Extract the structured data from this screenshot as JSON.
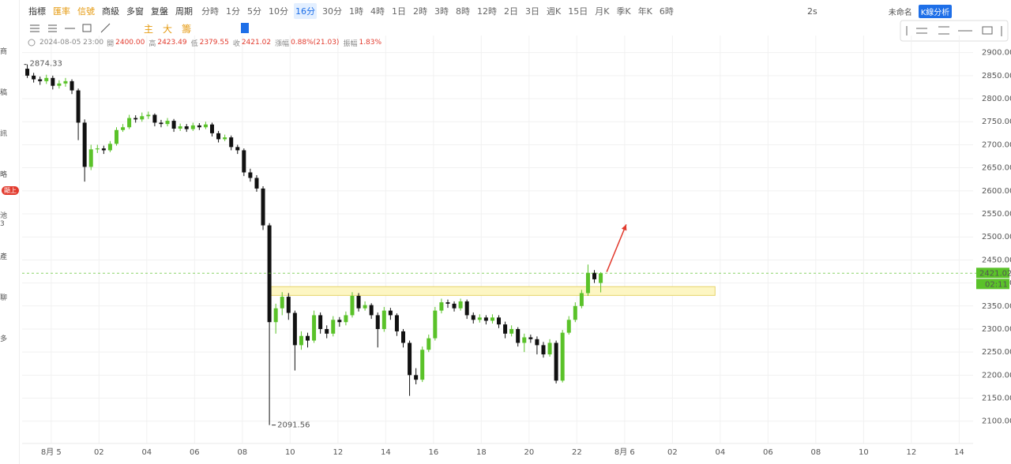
{
  "toolbar": {
    "tools": [
      {
        "text": "指標",
        "color": "#333333"
      },
      {
        "text": "匯率",
        "color": "#e59a10"
      },
      {
        "text": "信號",
        "color": "#e59a10"
      },
      {
        "text": "商級",
        "color": "#333333"
      },
      {
        "text": "多窗",
        "color": "#333333"
      },
      {
        "text": "复盤",
        "color": "#333333"
      },
      {
        "text": "周期",
        "color": "#333333"
      }
    ],
    "periods": [
      "分時",
      "1分",
      "5分",
      "10分",
      "16分",
      "30分",
      "1時",
      "4時",
      "1日",
      "2時",
      "3時",
      "8時",
      "12時",
      "2日",
      "3日",
      "週K",
      "15日",
      "月K",
      "季K",
      "年K",
      "6時"
    ],
    "active": 4,
    "right": {
      "interval": "2s",
      "name": "未命名",
      "button": "K線分析"
    },
    "indicators": [
      "主",
      "大",
      "籌"
    ]
  },
  "info": {
    "time": "2024-08-05 23:00",
    "fields": [
      {
        "label": "開",
        "value": "2400.00"
      },
      {
        "label": "高",
        "value": "2423.49"
      },
      {
        "label": "低",
        "value": "2379.55"
      },
      {
        "label": "收",
        "value": "2421.02"
      },
      {
        "label": "漲幅",
        "value": "0.88%(21.03)"
      },
      {
        "label": "振幅",
        "value": "1.83%"
      }
    ]
  },
  "sidebar": {
    "items": [
      "商",
      "稿",
      "訊",
      "略",
      "池3",
      "產",
      "聊",
      "多"
    ],
    "badge": "顯上"
  },
  "chart_data": {
    "type": "candlestick",
    "up_color": "#5ac229",
    "down_color": "#111111",
    "xlim": [
      -73,
      2315
    ],
    "ylim": [
      2055,
      2920
    ],
    "grid": true,
    "xticks": [
      {
        "value": 0,
        "label": "8月 5"
      },
      {
        "value": 120,
        "label": "02"
      },
      {
        "value": 240,
        "label": "04"
      },
      {
        "value": 360,
        "label": "06"
      },
      {
        "value": 480,
        "label": "08"
      },
      {
        "value": 600,
        "label": "10"
      },
      {
        "value": 720,
        "label": "12"
      },
      {
        "value": 840,
        "label": "14"
      },
      {
        "value": 960,
        "label": "16"
      },
      {
        "value": 1080,
        "label": "18"
      },
      {
        "value": 1200,
        "label": "20"
      },
      {
        "value": 1320,
        "label": "22"
      },
      {
        "value": 1440,
        "label": "8月 6"
      },
      {
        "value": 1560,
        "label": "02"
      },
      {
        "value": 1680,
        "label": "04"
      },
      {
        "value": 1800,
        "label": "06"
      },
      {
        "value": 1920,
        "label": "08"
      },
      {
        "value": 2040,
        "label": "10"
      },
      {
        "value": 2160,
        "label": "12"
      },
      {
        "value": 2280,
        "label": "14"
      }
    ],
    "yticks": [
      {
        "value": 2100,
        "label": "2100.00"
      },
      {
        "value": 2150,
        "label": "2150.00"
      },
      {
        "value": 2200,
        "label": "2200.00"
      },
      {
        "value": 2250,
        "label": "2250.00"
      },
      {
        "value": 2300,
        "label": "2300.00"
      },
      {
        "value": 2350,
        "label": "2350.00"
      },
      {
        "value": 2400,
        "label": "2400.00"
      },
      {
        "value": 2450,
        "label": "2450.00"
      },
      {
        "value": 2500,
        "label": "2500.00"
      },
      {
        "value": 2550,
        "label": "2550.00"
      },
      {
        "value": 2600,
        "label": "2600.00"
      },
      {
        "value": 2650,
        "label": "2650.00"
      },
      {
        "value": 2700,
        "label": "2700.00"
      },
      {
        "value": 2750,
        "label": "2750.00"
      },
      {
        "value": 2800,
        "label": "2800.00"
      },
      {
        "value": 2850,
        "label": "2850.00"
      },
      {
        "value": 2900,
        "label": "2900.00"
      }
    ],
    "x": [
      -60,
      -44,
      -28,
      -12,
      4,
      20,
      36,
      52,
      68,
      84,
      100,
      116,
      132,
      148,
      164,
      180,
      196,
      212,
      228,
      244,
      260,
      276,
      292,
      308,
      324,
      340,
      356,
      372,
      388,
      404,
      420,
      436,
      452,
      468,
      484,
      500,
      516,
      532,
      548,
      564,
      580,
      596,
      612,
      628,
      644,
      660,
      676,
      692,
      708,
      724,
      740,
      756,
      772,
      788,
      804,
      820,
      836,
      852,
      868,
      884,
      900,
      916,
      932,
      948,
      964,
      980,
      996,
      1012,
      1028,
      1044,
      1060,
      1076,
      1092,
      1108,
      1124,
      1140,
      1156,
      1172,
      1188,
      1204,
      1220,
      1236,
      1252,
      1268,
      1284,
      1300,
      1316,
      1332,
      1348,
      1364,
      1380
    ],
    "candles": [
      [
        2865,
        2874.33,
        2845,
        2850
      ],
      [
        2850,
        2856,
        2835,
        2842
      ],
      [
        2842,
        2848,
        2830,
        2838
      ],
      [
        2838,
        2852,
        2832,
        2845
      ],
      [
        2845,
        2850,
        2820,
        2828
      ],
      [
        2828,
        2840,
        2822,
        2833
      ],
      [
        2833,
        2845,
        2826,
        2838
      ],
      [
        2838,
        2842,
        2810,
        2818
      ],
      [
        2818,
        2822,
        2710,
        2748
      ],
      [
        2748,
        2755,
        2620,
        2652
      ],
      [
        2652,
        2700,
        2645,
        2690
      ],
      [
        2690,
        2700,
        2682,
        2692
      ],
      [
        2692,
        2698,
        2680,
        2688
      ],
      [
        2688,
        2708,
        2684,
        2702
      ],
      [
        2702,
        2738,
        2698,
        2732
      ],
      [
        2732,
        2745,
        2728,
        2738
      ],
      [
        2738,
        2765,
        2734,
        2758
      ],
      [
        2758,
        2764,
        2748,
        2755
      ],
      [
        2755,
        2770,
        2750,
        2762
      ],
      [
        2762,
        2772,
        2756,
        2765
      ],
      [
        2765,
        2768,
        2740,
        2748
      ],
      [
        2748,
        2754,
        2738,
        2745
      ],
      [
        2745,
        2758,
        2740,
        2752
      ],
      [
        2752,
        2756,
        2728,
        2735
      ],
      [
        2735,
        2746,
        2730,
        2740
      ],
      [
        2740,
        2745,
        2728,
        2734
      ],
      [
        2734,
        2748,
        2730,
        2742
      ],
      [
        2742,
        2747,
        2732,
        2738
      ],
      [
        2738,
        2750,
        2734,
        2744
      ],
      [
        2744,
        2748,
        2718,
        2725
      ],
      [
        2725,
        2730,
        2705,
        2712
      ],
      [
        2712,
        2722,
        2708,
        2716
      ],
      [
        2716,
        2720,
        2688,
        2695
      ],
      [
        2695,
        2700,
        2680,
        2688
      ],
      [
        2688,
        2692,
        2632,
        2640
      ],
      [
        2640,
        2648,
        2620,
        2628
      ],
      [
        2628,
        2634,
        2598,
        2605
      ],
      [
        2605,
        2610,
        2515,
        2525
      ],
      [
        2525,
        2530,
        2091.56,
        2315
      ],
      [
        2315,
        2355,
        2290,
        2345
      ],
      [
        2345,
        2380,
        2330,
        2370
      ],
      [
        2370,
        2378,
        2320,
        2335
      ],
      [
        2335,
        2340,
        2210,
        2265
      ],
      [
        2265,
        2295,
        2255,
        2285
      ],
      [
        2285,
        2292,
        2260,
        2275
      ],
      [
        2275,
        2340,
        2270,
        2330
      ],
      [
        2330,
        2336,
        2290,
        2300
      ],
      [
        2300,
        2308,
        2280,
        2290
      ],
      [
        2290,
        2328,
        2284,
        2320
      ],
      [
        2320,
        2326,
        2305,
        2315
      ],
      [
        2315,
        2338,
        2308,
        2330
      ],
      [
        2330,
        2380,
        2325,
        2372
      ],
      [
        2372,
        2378,
        2338,
        2345
      ],
      [
        2345,
        2360,
        2340,
        2352
      ],
      [
        2352,
        2356,
        2322,
        2330
      ],
      [
        2330,
        2336,
        2260,
        2300
      ],
      [
        2300,
        2348,
        2294,
        2340
      ],
      [
        2340,
        2346,
        2320,
        2330
      ],
      [
        2330,
        2334,
        2285,
        2295
      ],
      [
        2295,
        2300,
        2260,
        2270
      ],
      [
        2270,
        2275,
        2155,
        2200
      ],
      [
        2200,
        2215,
        2180,
        2190
      ],
      [
        2190,
        2262,
        2185,
        2255
      ],
      [
        2255,
        2288,
        2250,
        2280
      ],
      [
        2280,
        2348,
        2275,
        2340
      ],
      [
        2340,
        2366,
        2334,
        2358
      ],
      [
        2358,
        2364,
        2346,
        2355
      ],
      [
        2355,
        2360,
        2338,
        2345
      ],
      [
        2345,
        2366,
        2340,
        2360
      ],
      [
        2360,
        2364,
        2322,
        2330
      ],
      [
        2330,
        2336,
        2312,
        2320
      ],
      [
        2320,
        2332,
        2314,
        2325
      ],
      [
        2325,
        2330,
        2310,
        2318
      ],
      [
        2318,
        2332,
        2312,
        2325
      ],
      [
        2325,
        2330,
        2302,
        2310
      ],
      [
        2310,
        2316,
        2280,
        2290
      ],
      [
        2290,
        2308,
        2284,
        2300
      ],
      [
        2300,
        2304,
        2262,
        2270
      ],
      [
        2270,
        2290,
        2250,
        2282
      ],
      [
        2282,
        2288,
        2270,
        2278
      ],
      [
        2278,
        2284,
        2245,
        2265
      ],
      [
        2265,
        2272,
        2238,
        2245
      ],
      [
        2245,
        2278,
        2240,
        2270
      ],
      [
        2270,
        2275,
        2182,
        2188
      ],
      [
        2188,
        2298,
        2184,
        2292
      ],
      [
        2292,
        2328,
        2288,
        2320
      ],
      [
        2320,
        2358,
        2315,
        2350
      ],
      [
        2350,
        2385,
        2345,
        2378
      ],
      [
        2378,
        2440,
        2372,
        2422
      ],
      [
        2422,
        2428,
        2400,
        2408
      ],
      [
        2400,
        2423.49,
        2379.55,
        2421.02
      ]
    ],
    "max_label_index": 0,
    "min_label_index": 38,
    "countdown": "02:11",
    "zone": {
      "x": [
        546,
        1667
      ],
      "y": [
        2373,
        2392
      ],
      "color": "#fdf6c3"
    },
    "arrow": {
      "x": [
        1395,
        1444
      ],
      "y": [
        2424,
        2527
      ],
      "color": "#e23b2e"
    }
  }
}
